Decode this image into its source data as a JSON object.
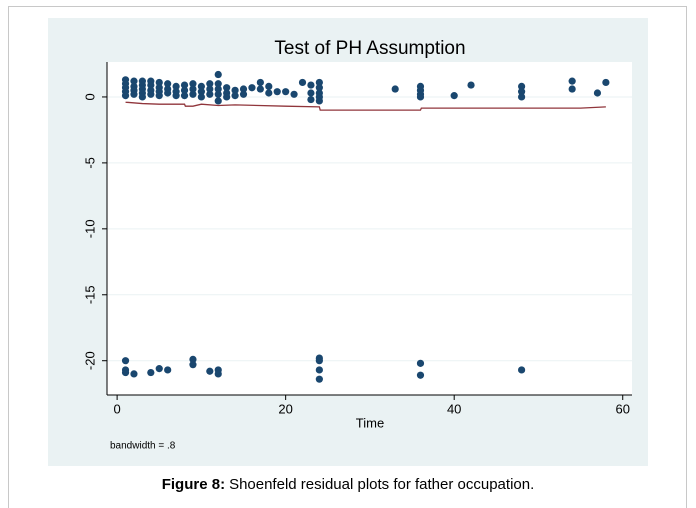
{
  "chart_data": {
    "type": "scatter",
    "title": "Test of PH Assumption",
    "xlabel": "Time",
    "note": "bandwidth = .8",
    "xlim": [
      -1.2,
      61.1
    ],
    "ylim": [
      -22.6,
      2.65
    ],
    "xticks": [
      0,
      20,
      40,
      60
    ],
    "yticks": [
      0,
      -5,
      -10,
      -15,
      -20
    ],
    "grid": true,
    "series": [
      {
        "type": "scatter",
        "color": "#1a476f",
        "x": [
          1,
          1,
          1,
          1,
          1,
          1,
          1,
          1,
          2,
          2,
          2,
          2,
          2,
          3,
          3,
          3,
          3,
          3,
          4,
          4,
          4,
          4,
          4,
          5,
          5,
          5,
          5,
          5,
          6,
          6,
          6,
          6,
          7,
          7,
          7,
          8,
          8,
          8,
          9,
          9,
          9,
          9,
          9,
          10,
          10,
          10,
          11,
          11,
          11,
          11,
          12,
          12,
          12,
          12,
          12,
          12,
          12,
          13,
          13,
          13,
          14,
          14,
          15,
          15,
          16,
          17,
          17,
          18,
          18,
          19,
          20,
          21,
          22,
          23,
          23,
          23,
          24,
          24,
          24,
          24,
          24,
          24,
          24,
          24,
          24,
          33,
          36,
          36,
          36,
          36,
          36,
          36,
          40,
          42,
          48,
          48,
          48,
          48,
          54,
          54,
          57,
          58
        ],
        "values": [
          1.3,
          1.0,
          0.7,
          0.4,
          0.1,
          -20.0,
          -20.7,
          -20.9,
          1.2,
          0.8,
          0.5,
          0.2,
          -21.0,
          1.2,
          0.9,
          0.6,
          0.3,
          0.0,
          1.2,
          0.9,
          0.5,
          0.2,
          -20.9,
          1.1,
          0.7,
          0.4,
          0.1,
          -20.6,
          1.0,
          0.6,
          0.3,
          -20.7,
          0.8,
          0.4,
          0.1,
          0.9,
          0.5,
          0.1,
          1.0,
          0.6,
          0.2,
          -19.9,
          -20.3,
          0.8,
          0.4,
          0.0,
          1.0,
          0.6,
          0.2,
          -20.8,
          1.7,
          1.0,
          0.6,
          0.2,
          -0.3,
          -20.7,
          -21.0,
          0.7,
          0.3,
          0.0,
          0.5,
          0.1,
          0.6,
          0.2,
          0.7,
          1.1,
          0.6,
          0.8,
          0.3,
          0.4,
          0.4,
          0.2,
          1.1,
          0.9,
          0.3,
          -0.2,
          1.1,
          0.7,
          0.3,
          0.0,
          -0.3,
          -19.8,
          -20.0,
          -20.7,
          -21.4,
          0.6,
          0.8,
          0.5,
          0.2,
          0.0,
          -20.2,
          -21.1,
          0.1,
          0.9,
          0.8,
          0.4,
          0.0,
          -20.7,
          1.2,
          0.6,
          0.3,
          1.1
        ]
      },
      {
        "type": "line",
        "color": "#90353b",
        "x": [
          1,
          3,
          5,
          8,
          8.1,
          9,
          10,
          12,
          14,
          20,
          24,
          24.1,
          36,
          36.1,
          48,
          55,
          58
        ],
        "values": [
          -0.4,
          -0.5,
          -0.55,
          -0.55,
          -0.7,
          -0.7,
          -0.55,
          -0.65,
          -0.6,
          -0.7,
          -0.75,
          -1.0,
          -1.0,
          -0.85,
          -0.85,
          -0.85,
          -0.75
        ]
      }
    ]
  },
  "caption": {
    "label": "Figure 8:",
    "text": "Shoenfeld residual plots for father occupation."
  }
}
